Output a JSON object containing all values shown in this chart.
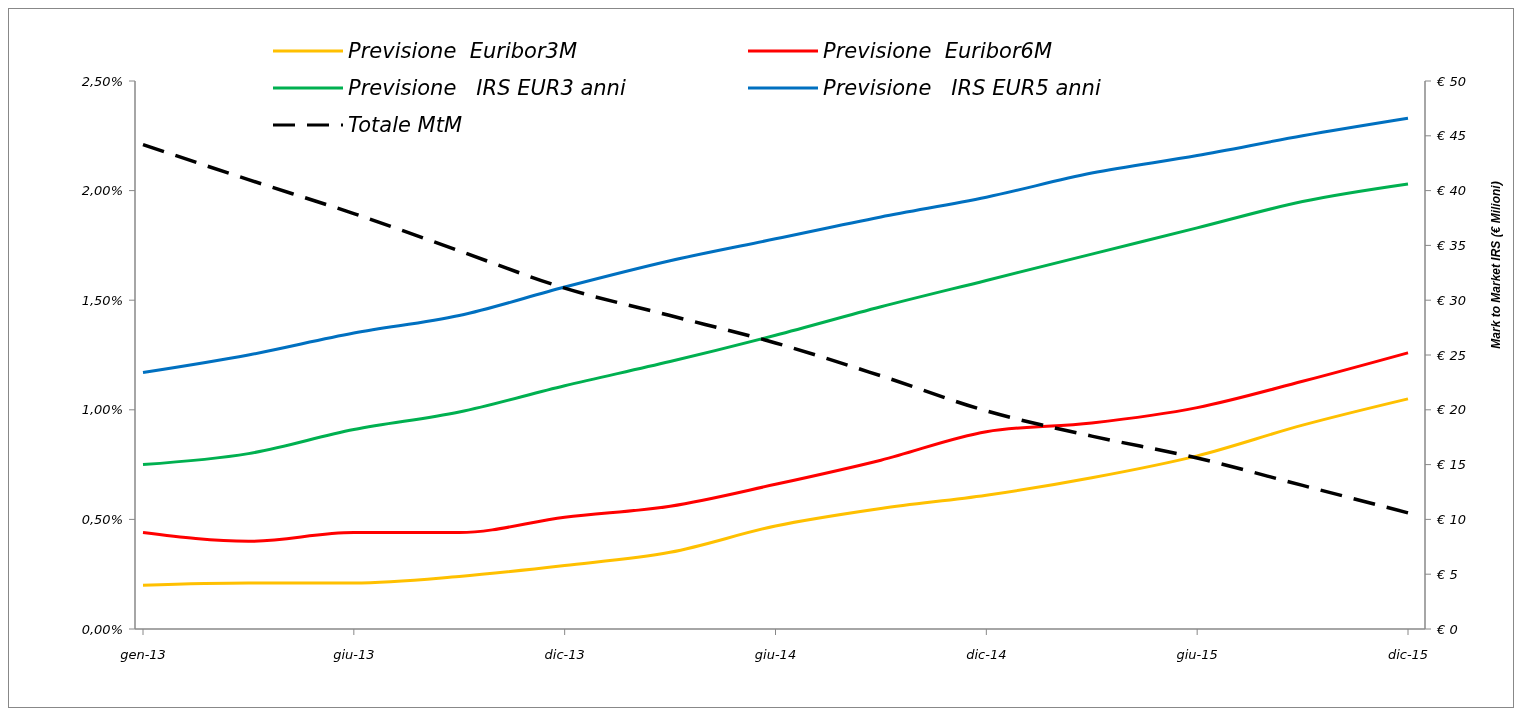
{
  "chart_data": {
    "type": "line",
    "y2label": "Mark to Market IRS (€ Milioni)",
    "categories": [
      "gen-13",
      null,
      "giu-13",
      null,
      "dic-13",
      null,
      "giu-14",
      null,
      "dic-14",
      null,
      "giu-15",
      null,
      "dic-15"
    ],
    "series": [
      {
        "name": "Previsione  Euribor3M",
        "color": "#ffc000",
        "values": [
          0.2,
          0.21,
          0.21,
          0.24,
          0.29,
          0.35,
          0.47,
          0.55,
          0.61,
          0.69,
          0.79,
          0.93,
          1.05
        ]
      },
      {
        "name": "Previsione  Euribor6M",
        "color": "#ff0000",
        "values": [
          0.44,
          0.4,
          0.44,
          0.44,
          0.51,
          0.56,
          0.66,
          0.77,
          0.9,
          0.94,
          1.01,
          1.13,
          1.26
        ]
      },
      {
        "name": "Previsione   IRS EUR3 anni",
        "color": "#00b050",
        "values": [
          0.75,
          0.8,
          0.91,
          0.99,
          1.11,
          1.22,
          1.34,
          1.47,
          1.59,
          1.71,
          1.83,
          1.95,
          2.03
        ]
      },
      {
        "name": "Previsione   IRS EUR5 anni",
        "color": "#0070c0",
        "values": [
          1.17,
          1.25,
          1.35,
          1.43,
          1.56,
          1.68,
          1.78,
          1.88,
          1.97,
          2.08,
          2.16,
          2.25,
          2.33
        ]
      },
      {
        "name": "Totale MtM",
        "color": "#000000",
        "axis": "y2",
        "line_style": "dashed",
        "values": [
          44.2,
          41.0,
          37.9,
          34.5,
          31.1,
          28.6,
          26.1,
          23.1,
          19.9,
          17.6,
          15.6,
          13.1,
          10.6
        ]
      }
    ],
    "ylim": [
      0,
      2.5
    ],
    "yticks": [
      {
        "value": 0,
        "label": "0,00%"
      },
      {
        "value": 0.5,
        "label": "0,50%"
      },
      {
        "value": 1,
        "label": "1,00%"
      },
      {
        "value": 1.5,
        "label": "1,50%"
      },
      {
        "value": 2,
        "label": "2,00%"
      },
      {
        "value": 2.5,
        "label": "2,50%"
      }
    ],
    "y2lim": [
      0,
      50
    ],
    "y2ticks": [
      {
        "value": 0,
        "label": "€ 0"
      },
      {
        "value": 5,
        "label": "€ 5"
      },
      {
        "value": 10,
        "label": "€ 10"
      },
      {
        "value": 15,
        "label": "€ 15"
      },
      {
        "value": 20,
        "label": "€ 20"
      },
      {
        "value": 25,
        "label": "€ 25"
      },
      {
        "value": 30,
        "label": "€ 30"
      },
      {
        "value": 35,
        "label": "€ 35"
      },
      {
        "value": 40,
        "label": "€ 40"
      },
      {
        "value": 45,
        "label": "€ 45"
      },
      {
        "value": 50,
        "label": "€ 50"
      }
    ],
    "grid": false,
    "legend": "top",
    "marker": "none"
  }
}
